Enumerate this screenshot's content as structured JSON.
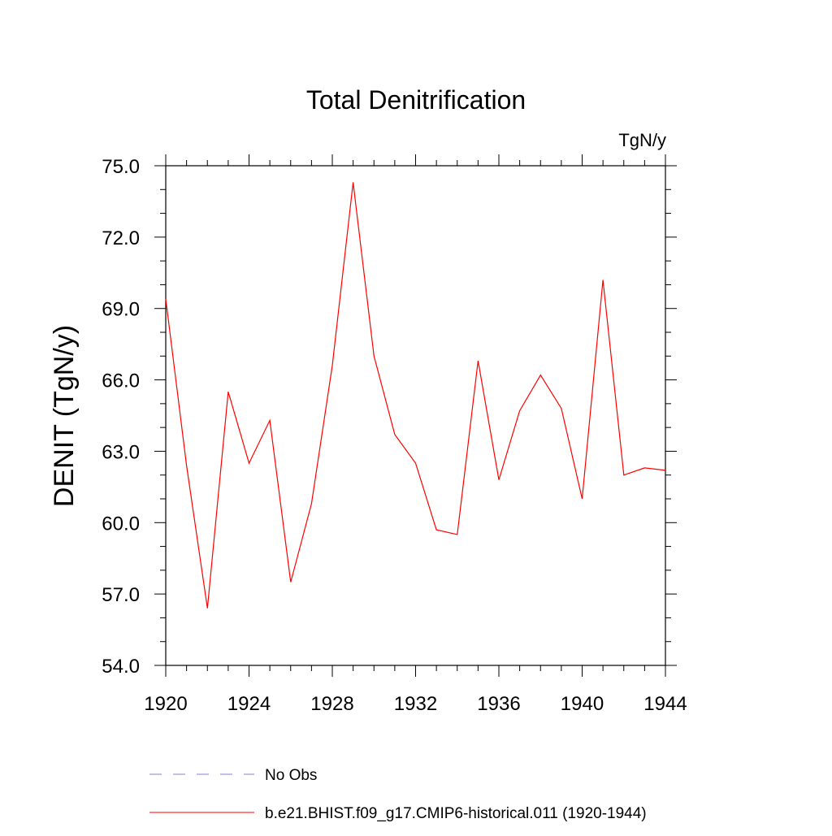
{
  "chart_data": {
    "type": "line",
    "title": "Total Denitrification",
    "units_label": "TgN/y",
    "ylabel": "DENIT  (TgN/y)",
    "xlabel": "",
    "xlim": [
      1920,
      1944
    ],
    "ylim": [
      54.0,
      75.0
    ],
    "x_ticks": [
      "1920",
      "1924",
      "1928",
      "1932",
      "1936",
      "1940",
      "1944"
    ],
    "y_ticks": [
      "54.0",
      "57.0",
      "60.0",
      "63.0",
      "66.0",
      "69.0",
      "72.0",
      "75.0"
    ],
    "grid": false,
    "x": [
      1920,
      1921,
      1922,
      1923,
      1924,
      1925,
      1926,
      1927,
      1928,
      1929,
      1930,
      1931,
      1932,
      1933,
      1934,
      1935,
      1936,
      1937,
      1938,
      1939,
      1940,
      1941,
      1942,
      1943,
      1944
    ],
    "series": [
      {
        "name": "b.e21.BHIST.f09_g17.CMIP6-historical.011 (1920-1944)",
        "color": "#ff0000",
        "style": "solid",
        "values": [
          69.4,
          62.4,
          56.4,
          65.5,
          62.5,
          64.3,
          57.5,
          60.8,
          66.6,
          74.3,
          67.0,
          63.7,
          62.5,
          59.7,
          59.5,
          66.8,
          61.8,
          64.7,
          66.2,
          64.8,
          61.0,
          70.2,
          62.0,
          62.3,
          62.2
        ]
      }
    ],
    "legend": [
      {
        "label": "No Obs",
        "color": "#8a7fd6",
        "style": "dashed"
      },
      {
        "label": "b.e21.BHIST.f09_g17.CMIP6-historical.011 (1920-1944)",
        "color": "#ff0000",
        "style": "solid"
      }
    ]
  }
}
